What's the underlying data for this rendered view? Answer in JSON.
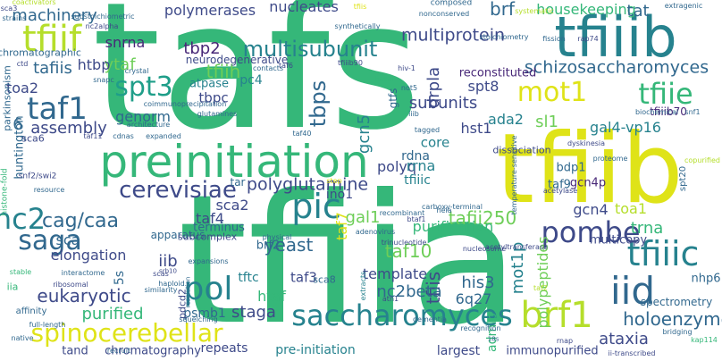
{
  "palette": [
    "#440154",
    "#482878",
    "#3e4a89",
    "#31688e",
    "#26828e",
    "#1f9e89",
    "#35b779",
    "#6ece58",
    "#b5de2b",
    "#dfe318"
  ],
  "words": [
    {
      "text": "tafs",
      "c": 6
    },
    {
      "text": "tfiia",
      "c": 6
    },
    {
      "text": "tfiib",
      "c": 9
    },
    {
      "text": "preinitiation",
      "c": 6
    },
    {
      "text": "tfiiib",
      "c": 4
    },
    {
      "text": "saccharomyces",
      "c": 4
    },
    {
      "text": "tfiif",
      "c": 8
    },
    {
      "text": "pol",
      "c": 4
    },
    {
      "text": "pic",
      "c": 4
    },
    {
      "text": "iid",
      "c": 3
    },
    {
      "text": "brf1",
      "c": 8
    },
    {
      "text": "tfiiic",
      "c": 4
    },
    {
      "text": "spinocerebellar",
      "c": 9
    },
    {
      "text": "taf1",
      "c": 3
    },
    {
      "text": "spt3",
      "c": 5
    },
    {
      "text": "saga",
      "c": 3
    },
    {
      "text": "pombe",
      "c": 2
    },
    {
      "text": "cerevisiae",
      "c": 2
    },
    {
      "text": "mot1",
      "c": 9
    },
    {
      "text": "tfiie",
      "c": 6
    },
    {
      "text": "schizosaccharomyces",
      "c": 3
    },
    {
      "text": "multisubunit",
      "c": 4
    },
    {
      "text": "tfiih",
      "c": 7
    },
    {
      "text": "nc2",
      "c": 4
    },
    {
      "text": "tbps",
      "c": 3
    },
    {
      "text": "polyglutamine",
      "c": 2
    },
    {
      "text": "multiprotein",
      "c": 2
    },
    {
      "text": "cag/caa",
      "c": 3
    },
    {
      "text": "eukaryotic",
      "c": 2
    },
    {
      "text": "holoenzyme",
      "c": 3
    },
    {
      "text": "ataxia",
      "c": 2
    },
    {
      "text": "tafii250",
      "c": 7
    },
    {
      "text": "tfiis",
      "c": 2
    },
    {
      "text": "yeast",
      "c": 3
    },
    {
      "text": "tafiis",
      "c": 3
    },
    {
      "text": "machinery",
      "c": 3
    },
    {
      "text": "nucleates",
      "c": 2
    },
    {
      "text": "polymerases",
      "c": 2
    },
    {
      "text": "brf",
      "c": 3
    },
    {
      "text": "tbp2",
      "c": 1
    },
    {
      "text": "housekeeping",
      "c": 6
    },
    {
      "text": "tat",
      "c": 3
    },
    {
      "text": "snrna",
      "c": 1
    },
    {
      "text": "ytaf",
      "c": 7
    },
    {
      "text": "htbp",
      "c": 2
    },
    {
      "text": "assembly",
      "c": 2
    },
    {
      "text": "subunits",
      "c": 2
    },
    {
      "text": "drpla",
      "c": 2
    },
    {
      "text": "spt8",
      "c": 2
    },
    {
      "text": "reconstituted",
      "c": 1
    },
    {
      "text": "gcn5",
      "c": 4
    },
    {
      "text": "tfiiib70",
      "c": 1
    },
    {
      "text": "sl1",
      "c": 7
    },
    {
      "text": "gal4-vp16",
      "c": 4
    },
    {
      "text": "hst1",
      "c": 2
    },
    {
      "text": "ada2",
      "c": 4
    },
    {
      "text": "tbpc",
      "c": 2
    },
    {
      "text": "pc4",
      "c": 4
    },
    {
      "text": "toa2",
      "c": 2
    },
    {
      "text": "genorm",
      "c": 3
    },
    {
      "text": "polyq",
      "c": 2
    },
    {
      "text": "rrna",
      "c": 4
    },
    {
      "text": "rdna",
      "c": 3
    },
    {
      "text": "ino1",
      "c": 2
    },
    {
      "text": "sca2",
      "c": 2
    },
    {
      "text": "sca",
      "c": 3
    },
    {
      "text": "elongation",
      "c": 2
    },
    {
      "text": "tfiiic",
      "c": 4
    },
    {
      "text": "purification",
      "c": 6
    },
    {
      "text": "gal1",
      "c": 7
    },
    {
      "text": "gcn4",
      "c": 2
    },
    {
      "text": "gcn4p",
      "c": 1
    },
    {
      "text": "tfiia",
      "c": 6
    },
    {
      "text": "toa1",
      "c": 8
    },
    {
      "text": "bdp1",
      "c": 3
    },
    {
      "text": "tafiia",
      "c": 3
    },
    {
      "text": "tfiia",
      "c": 6
    },
    {
      "text": "tfiia",
      "c": 6
    },
    {
      "text": "tafiia",
      "c": 3
    },
    {
      "text": "taf4",
      "c": 2
    },
    {
      "text": "iib",
      "c": 2
    },
    {
      "text": "tfiia",
      "c": 6
    },
    {
      "text": "taf10",
      "c": 7
    },
    {
      "text": "template",
      "c": 2
    },
    {
      "text": "his3",
      "c": 3
    },
    {
      "text": "6q27",
      "c": 3
    },
    {
      "text": "mot1p",
      "c": 4
    },
    {
      "text": "polypeptides",
      "c": 7
    },
    {
      "text": "nc2beta",
      "c": 3
    },
    {
      "text": "staga",
      "c": 2
    },
    {
      "text": "htaf",
      "c": 6
    },
    {
      "text": "purified",
      "c": 6
    },
    {
      "text": "psmb1",
      "c": 3
    },
    {
      "text": "repeats",
      "c": 2
    },
    {
      "text": "admlp",
      "c": 6
    },
    {
      "text": "largest",
      "c": 2
    },
    {
      "text": "immunopurified",
      "c": 2
    },
    {
      "text": "chromatography",
      "c": 2
    },
    {
      "text": "tand",
      "c": 2
    },
    {
      "text": "pre-initiation",
      "c": 4
    },
    {
      "text": "nhp6",
      "c": 3
    },
    {
      "text": "spectrometry",
      "c": 3
    },
    {
      "text": "trna",
      "c": 6
    },
    {
      "text": "5s",
      "c": 3
    },
    {
      "text": "apparatus",
      "c": 3
    },
    {
      "text": "subcomplex",
      "c": 2
    },
    {
      "text": "huntington",
      "c": 3
    },
    {
      "text": "terminus",
      "c": 3
    },
    {
      "text": "tftc",
      "c": 4
    },
    {
      "text": "taf3",
      "c": 2
    },
    {
      "text": "taf7",
      "c": 9
    },
    {
      "text": "sca8",
      "c": 3
    },
    {
      "text": "taf9",
      "c": 3
    },
    {
      "text": "tar",
      "c": 3
    },
    {
      "text": "brf2",
      "c": 3
    },
    {
      "text": "multicopy",
      "c": 2
    },
    {
      "text": "iii",
      "c": 3
    },
    {
      "text": "core",
      "c": 4
    },
    {
      "text": "dissociation",
      "c": 2
    },
    {
      "text": "6",
      "c": 3
    },
    {
      "text": "sca6",
      "c": 2
    },
    {
      "text": "atpase",
      "c": 4
    },
    {
      "text": "neurodegenerative",
      "c": 2
    },
    {
      "text": "gtfs",
      "c": 3
    },
    {
      "text": "chromatographic",
      "c": 3
    },
    {
      "text": "histone-fold",
      "c": 6
    },
    {
      "text": "snf2/swi2",
      "c": 2
    },
    {
      "text": "resource",
      "c": 3
    },
    {
      "text": "interactome",
      "c": 3
    },
    {
      "text": "ribosomal",
      "c": 2
    },
    {
      "text": "stable",
      "c": 6
    },
    {
      "text": "iia",
      "c": 6
    },
    {
      "text": "affinity",
      "c": 3
    },
    {
      "text": "full-length",
      "c": 3
    },
    {
      "text": "native",
      "c": 3
    },
    {
      "text": "recruit",
      "c": 3
    },
    {
      "text": "scas",
      "c": 2
    },
    {
      "text": "pdcd2",
      "c": 2
    },
    {
      "text": "haploid",
      "c": 3
    },
    {
      "text": "similarity",
      "c": 3
    },
    {
      "text": "srb10",
      "c": 2
    },
    {
      "text": "squelching",
      "c": 3
    },
    {
      "text": "resolution",
      "c": 3
    },
    {
      "text": "expansions",
      "c": 3
    },
    {
      "text": "physical",
      "c": 3
    },
    {
      "text": "adenovirus",
      "c": 3
    },
    {
      "text": "trinucleotide",
      "c": 2
    },
    {
      "text": "btaf1",
      "c": 2
    },
    {
      "text": "acetyltransferase",
      "c": 2
    },
    {
      "text": "nucleosome",
      "c": 2
    },
    {
      "text": "dementia",
      "c": 3
    },
    {
      "text": "extracts",
      "c": 4
    },
    {
      "text": "atn1",
      "c": 2
    },
    {
      "text": "recognition",
      "c": 3
    },
    {
      "text": "18s",
      "c": 3
    },
    {
      "text": "rnap",
      "c": 2
    },
    {
      "text": "taf2",
      "c": 8
    },
    {
      "text": "bridging",
      "c": 3
    },
    {
      "text": "kap114",
      "c": 6
    },
    {
      "text": "ii-transcribed",
      "c": 2
    },
    {
      "text": "proteome",
      "c": 3
    },
    {
      "text": "copurified",
      "c": 8
    },
    {
      "text": "spt20",
      "c": 3
    },
    {
      "text": "acetylase",
      "c": 2
    },
    {
      "text": "temperature-sensitive",
      "c": 3
    },
    {
      "text": "recombinant",
      "c": 3
    },
    {
      "text": "carboxy-terminal",
      "c": 3
    },
    {
      "text": "hela",
      "c": 3
    },
    {
      "text": "step",
      "c": 9
    },
    {
      "text": "tagged",
      "c": 3
    },
    {
      "text": "taf40",
      "c": 3
    },
    {
      "text": "cdnas",
      "c": 3
    },
    {
      "text": "expanded",
      "c": 3
    },
    {
      "text": "taf11",
      "c": 2
    },
    {
      "text": "glutamines",
      "c": 3
    },
    {
      "text": "coimmunoprecipitation",
      "c": 3
    },
    {
      "text": "architecture",
      "c": 3
    },
    {
      "text": "basal",
      "c": 6
    },
    {
      "text": "not5",
      "c": 3
    },
    {
      "text": "iiib",
      "c": 3
    },
    {
      "text": "hiv-1",
      "c": 2
    },
    {
      "text": "contacts",
      "c": 3
    },
    {
      "text": "taf6",
      "c": 2
    },
    {
      "text": "tfiiib90",
      "c": 2
    },
    {
      "text": "crystal",
      "c": 3
    },
    {
      "text": "snapc",
      "c": 3
    },
    {
      "text": "parkinsonism",
      "c": 3
    },
    {
      "text": "ctd",
      "c": 2
    },
    {
      "text": "nc2alpha",
      "c": 2
    },
    {
      "text": "coactivators",
      "c": 8
    },
    {
      "text": "substoichiometric",
      "c": 3
    },
    {
      "text": "sca3",
      "c": 2
    },
    {
      "text": "strains",
      "c": 3
    },
    {
      "text": "composed",
      "c": 3
    },
    {
      "text": "nonconserved",
      "c": 3
    },
    {
      "text": "tfiis",
      "c": 9
    },
    {
      "text": "synthetically",
      "c": 3
    },
    {
      "text": "stoichiometry",
      "c": 3
    },
    {
      "text": "systematic",
      "c": 8
    },
    {
      "text": "extragenic",
      "c": 3
    },
    {
      "text": "fission",
      "c": 3
    },
    {
      "text": "rap74",
      "c": 2
    },
    {
      "text": "snf1",
      "c": 3
    },
    {
      "text": "biochemical",
      "c": 3
    },
    {
      "text": "dyskinesia",
      "c": 2
    }
  ]
}
